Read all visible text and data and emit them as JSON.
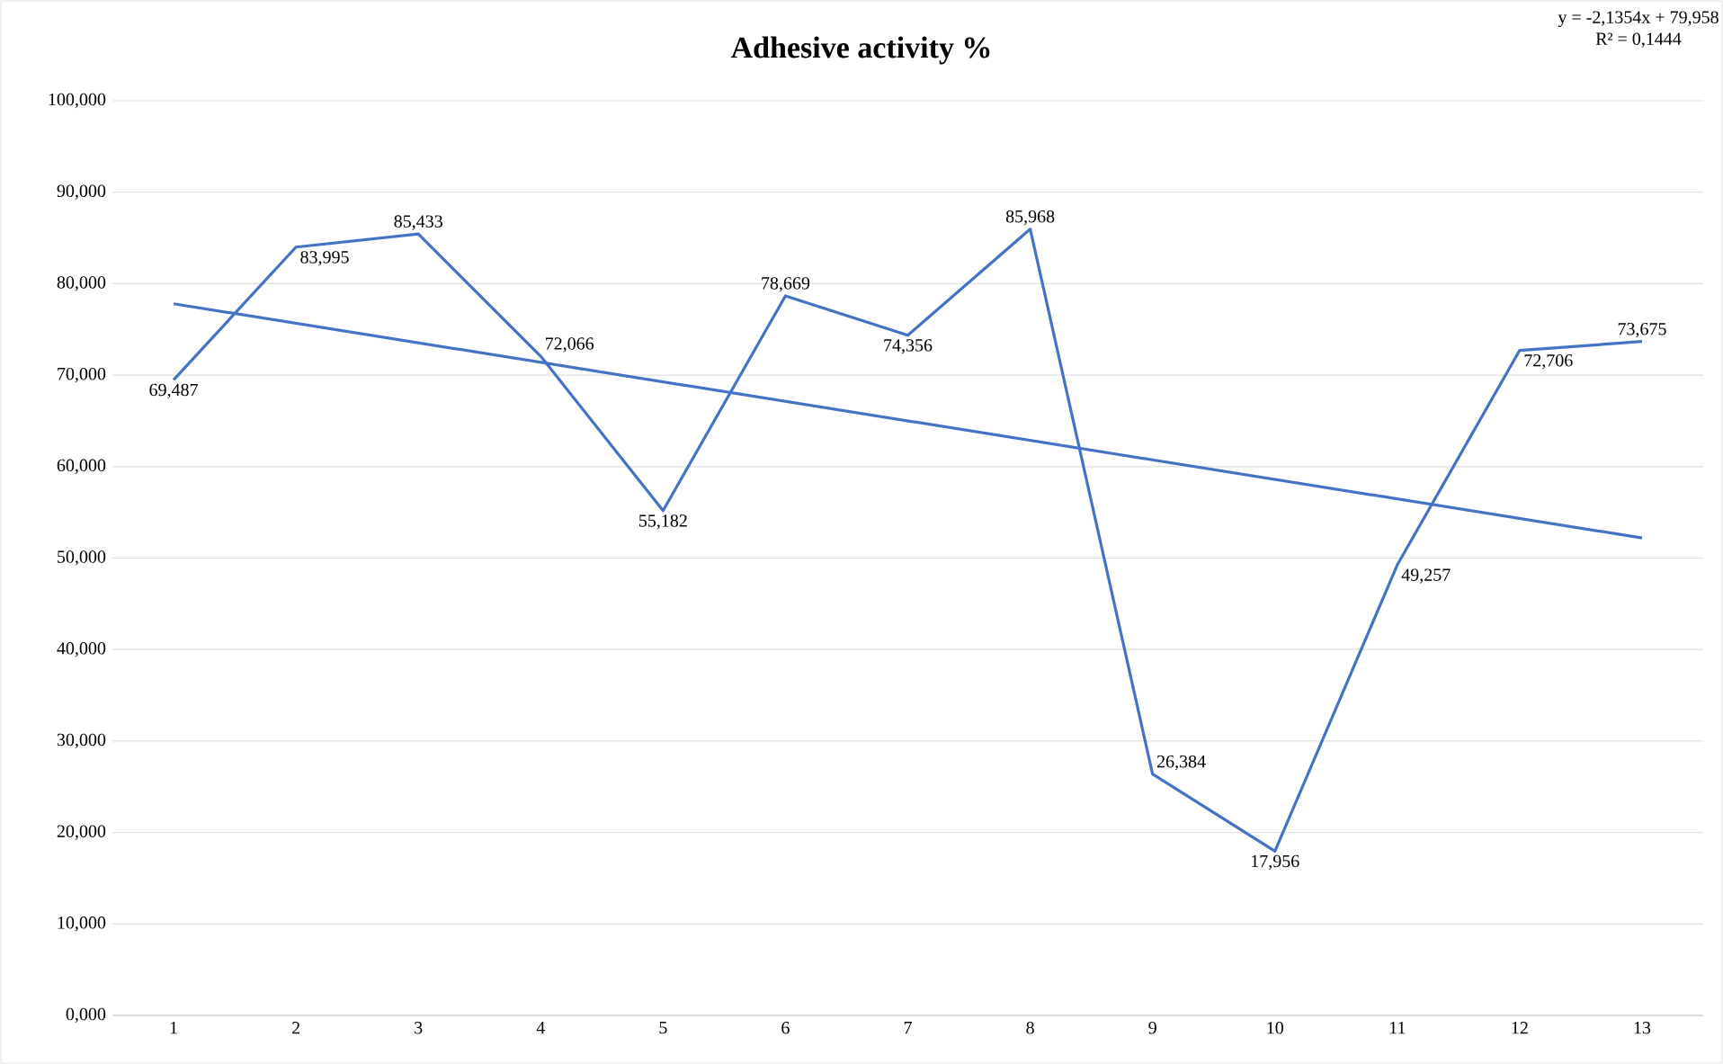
{
  "chart_data": {
    "type": "line",
    "title": "Adhesive activity %",
    "x": [
      1,
      2,
      3,
      4,
      5,
      6,
      7,
      8,
      9,
      10,
      11,
      12,
      13
    ],
    "xlim": [
      0.5,
      13.5
    ],
    "xticks": [
      1,
      2,
      3,
      4,
      5,
      6,
      7,
      8,
      9,
      10,
      11,
      12,
      13
    ],
    "ylim": [
      0,
      100
    ],
    "yticks": [
      {
        "value": 0,
        "label": "0,000"
      },
      {
        "value": 10,
        "label": "10,000"
      },
      {
        "value": 20,
        "label": "20,000"
      },
      {
        "value": 30,
        "label": "30,000"
      },
      {
        "value": 40,
        "label": "40,000"
      },
      {
        "value": 50,
        "label": "50,000"
      },
      {
        "value": 60,
        "label": "60,000"
      },
      {
        "value": 70,
        "label": "70,000"
      },
      {
        "value": 80,
        "label": "80,000"
      },
      {
        "value": 90,
        "label": "90,000"
      },
      {
        "value": 100,
        "label": "100,000"
      }
    ],
    "series": [
      {
        "color": "#4472c4",
        "values": [
          69.487,
          83.995,
          85.433,
          72.066,
          55.182,
          78.669,
          74.356,
          85.968,
          26.384,
          17.956,
          49.257,
          72.706,
          73.675
        ],
        "value_labels": [
          "69,487",
          "83,995",
          "85,433",
          "72,066",
          "55,182",
          "78,669",
          "74,356",
          "85,968",
          "26,384",
          "17,956",
          "49,257",
          "72,706",
          "73,675"
        ]
      },
      {
        "type": "line",
        "color": "#4472c4",
        "x": [
          1,
          13
        ],
        "values": [
          77.8,
          52.2
        ]
      }
    ],
    "annotations": [
      "y = -2,1354x + 79,958",
      "R² = 0,1444"
    ],
    "grid": "y",
    "marker": "none",
    "line_style": "solid"
  }
}
